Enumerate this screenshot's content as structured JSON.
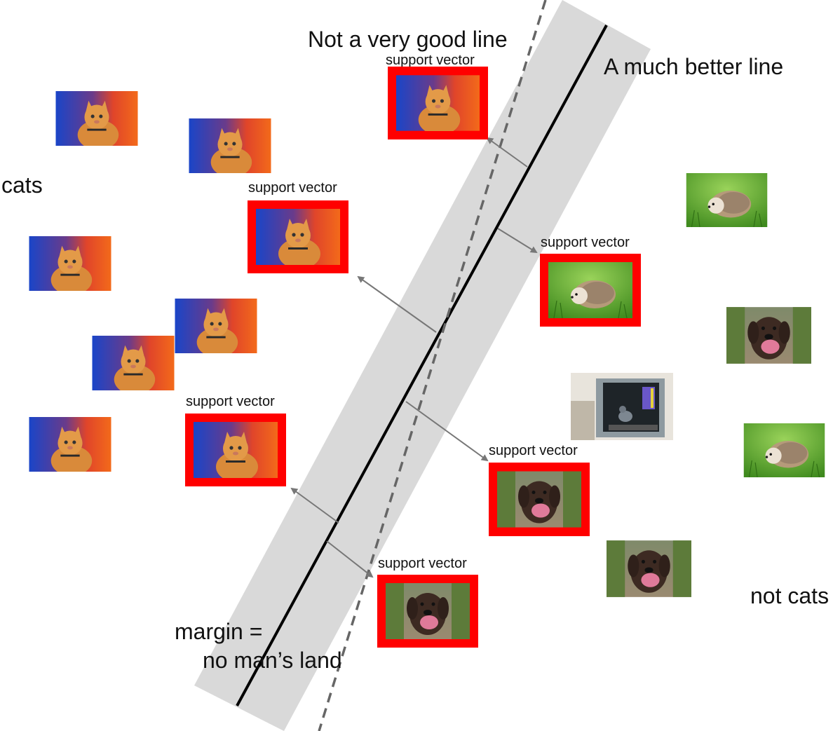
{
  "labels": {
    "bad_line": "Not a very good line",
    "good_line": "A much better line",
    "class_a": "cats",
    "class_b": "not cats",
    "margin_line1": "margin =",
    "margin_line2": "no man’s land",
    "support_vector": "support vector"
  },
  "colors": {
    "margin_band": "#d9d9d9",
    "good_line": "#000000",
    "bad_line": "#666666",
    "arrow": "#777777",
    "support_frame": "#ff0000"
  },
  "icons": {
    "cat": "cat-photo",
    "dog": "dog-photo",
    "hedgehog": "hedgehog-photo",
    "pigeon": "pigeon-in-box-photo"
  }
}
